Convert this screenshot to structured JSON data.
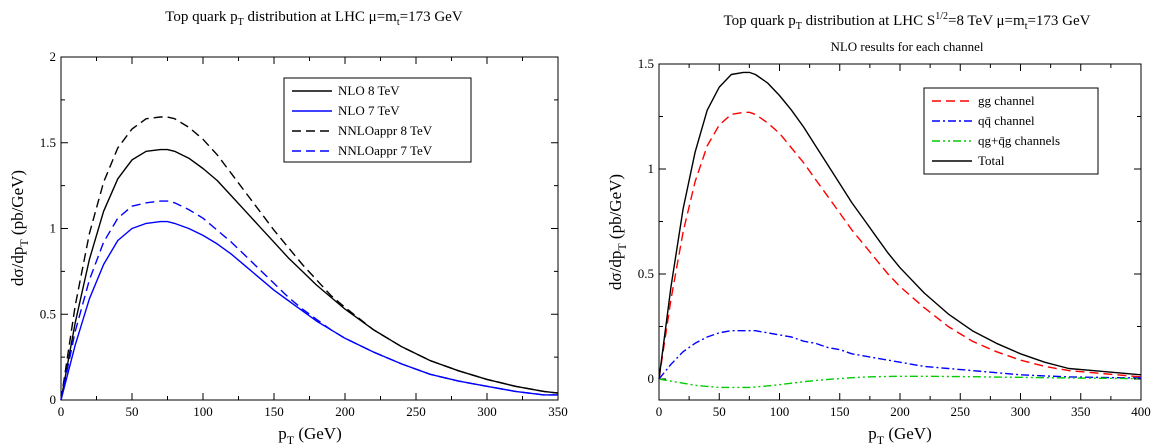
{
  "chart_data": [
    {
      "type": "line",
      "title": "Top quark p",
      "title_sub": "T",
      "title_rest": " distribution   at  LHC     μ=m",
      "title_sub2": "t",
      "title_rest2": "=173 GeV",
      "xlabel": "p",
      "xlabel_sub": "T",
      "xlabel_rest": " (GeV)",
      "ylabel": "dσ/dp",
      "ylabel_sub": "T",
      "ylabel_rest": " (pb/GeV)",
      "xlim": [
        0,
        350
      ],
      "ylim": [
        0,
        2
      ],
      "xticks": [
        "0",
        "50",
        "100",
        "150",
        "200",
        "250",
        "300",
        "350"
      ],
      "yticks": [
        "0",
        "0.5",
        "1",
        "1.5",
        "2"
      ],
      "legend_position": "top-right",
      "grid": false,
      "x": [
        0,
        10,
        20,
        30,
        40,
        50,
        60,
        70,
        75,
        80,
        90,
        100,
        110,
        120,
        130,
        140,
        150,
        160,
        170,
        180,
        190,
        200,
        220,
        240,
        260,
        280,
        300,
        320,
        340,
        350
      ],
      "series": [
        {
          "name": "NLO  8 TeV",
          "color": "#000000",
          "dash": "solid",
          "values": [
            0.0,
            0.45,
            0.82,
            1.1,
            1.29,
            1.4,
            1.45,
            1.46,
            1.46,
            1.45,
            1.41,
            1.35,
            1.28,
            1.19,
            1.1,
            1.01,
            0.92,
            0.83,
            0.75,
            0.67,
            0.6,
            0.53,
            0.41,
            0.31,
            0.23,
            0.17,
            0.12,
            0.08,
            0.05,
            0.04
          ]
        },
        {
          "name": "NLO  7 TeV",
          "color": "#0000ff",
          "dash": "solid",
          "values": [
            0.0,
            0.32,
            0.59,
            0.79,
            0.93,
            1.0,
            1.03,
            1.04,
            1.04,
            1.03,
            1.0,
            0.96,
            0.91,
            0.85,
            0.78,
            0.71,
            0.64,
            0.58,
            0.52,
            0.46,
            0.41,
            0.36,
            0.28,
            0.21,
            0.15,
            0.11,
            0.08,
            0.05,
            0.03,
            0.03
          ]
        },
        {
          "name": "NNLOappr 8 TeV",
          "color": "#000000",
          "dash": "dashed",
          "values": [
            0.0,
            0.55,
            0.97,
            1.27,
            1.47,
            1.58,
            1.64,
            1.65,
            1.65,
            1.64,
            1.59,
            1.52,
            1.43,
            1.32,
            1.21,
            1.1,
            0.99,
            0.89,
            0.79,
            0.7,
            0.61,
            0.54,
            0.41,
            0.31,
            0.23,
            0.17,
            0.12,
            0.08,
            0.05,
            0.04
          ]
        },
        {
          "name": "NNLOappr 7 TeV",
          "color": "#0000ff",
          "dash": "dashed",
          "values": [
            0.0,
            0.4,
            0.7,
            0.92,
            1.06,
            1.13,
            1.15,
            1.16,
            1.16,
            1.15,
            1.11,
            1.06,
            0.99,
            0.92,
            0.84,
            0.76,
            0.68,
            0.6,
            0.53,
            0.47,
            0.41,
            0.36,
            0.28,
            0.21,
            0.15,
            0.11,
            0.08,
            0.05,
            0.03,
            0.03
          ]
        }
      ]
    },
    {
      "type": "line",
      "title": "Top quark p",
      "title_sub": "T",
      "title_rest": " distribution at LHC  S",
      "title_sup": "1/2",
      "title_rest2": "=8 TeV   μ=m",
      "title_sub2": "t",
      "title_rest3": "=173 GeV",
      "subtitle": "NLO results for each channel",
      "xlabel": "p",
      "xlabel_sub": "T",
      "xlabel_rest": " (GeV)",
      "ylabel": "dσ/dp",
      "ylabel_sub": "T",
      "ylabel_rest": " (pb/GeV)",
      "xlim": [
        0,
        400
      ],
      "ylim": [
        -0.1,
        1.5
      ],
      "xticks": [
        "0",
        "50",
        "100",
        "150",
        "200",
        "250",
        "300",
        "350",
        "400"
      ],
      "yticks": [
        "0",
        "0.5",
        "1",
        "1.5"
      ],
      "ytick_values": [
        0,
        0.5,
        1,
        1.5
      ],
      "legend_position": "top-right",
      "grid": false,
      "x": [
        0,
        10,
        20,
        30,
        40,
        50,
        60,
        70,
        75,
        80,
        90,
        100,
        110,
        120,
        130,
        140,
        150,
        160,
        170,
        180,
        190,
        200,
        220,
        240,
        260,
        280,
        300,
        320,
        340,
        360,
        380,
        400
      ],
      "series": [
        {
          "name": "gg channel",
          "color": "#ff0000",
          "dash": "dashed",
          "values": [
            0.0,
            0.38,
            0.7,
            0.94,
            1.11,
            1.21,
            1.26,
            1.27,
            1.27,
            1.26,
            1.22,
            1.17,
            1.1,
            1.03,
            0.95,
            0.87,
            0.79,
            0.71,
            0.64,
            0.57,
            0.5,
            0.44,
            0.34,
            0.25,
            0.18,
            0.13,
            0.09,
            0.06,
            0.04,
            0.03,
            0.02,
            0.01
          ]
        },
        {
          "name": "qq̄ channel",
          "color": "#0000ff",
          "dash": "dashdot",
          "values": [
            0.0,
            0.07,
            0.13,
            0.17,
            0.2,
            0.22,
            0.23,
            0.23,
            0.23,
            0.23,
            0.22,
            0.21,
            0.2,
            0.18,
            0.17,
            0.15,
            0.14,
            0.12,
            0.11,
            0.1,
            0.09,
            0.08,
            0.06,
            0.05,
            0.04,
            0.03,
            0.02,
            0.015,
            0.01,
            0.008,
            0.006,
            0.005
          ]
        },
        {
          "name": "qg+q̄g channels",
          "color": "#00cc00",
          "dash": "dashdotdot",
          "values": [
            0.0,
            -0.01,
            -0.02,
            -0.03,
            -0.035,
            -0.04,
            -0.04,
            -0.04,
            -0.04,
            -0.038,
            -0.033,
            -0.027,
            -0.02,
            -0.013,
            -0.007,
            -0.002,
            0.002,
            0.006,
            0.009,
            0.011,
            0.012,
            0.013,
            0.013,
            0.012,
            0.011,
            0.009,
            0.008,
            0.006,
            0.005,
            0.004,
            0.003,
            0.002
          ]
        },
        {
          "name": "Total",
          "color": "#000000",
          "dash": "solid",
          "values": [
            0.0,
            0.44,
            0.81,
            1.08,
            1.28,
            1.39,
            1.45,
            1.46,
            1.46,
            1.45,
            1.41,
            1.35,
            1.28,
            1.2,
            1.11,
            1.02,
            0.93,
            0.84,
            0.76,
            0.68,
            0.6,
            0.53,
            0.41,
            0.31,
            0.23,
            0.17,
            0.12,
            0.08,
            0.05,
            0.04,
            0.03,
            0.02
          ]
        }
      ]
    }
  ]
}
